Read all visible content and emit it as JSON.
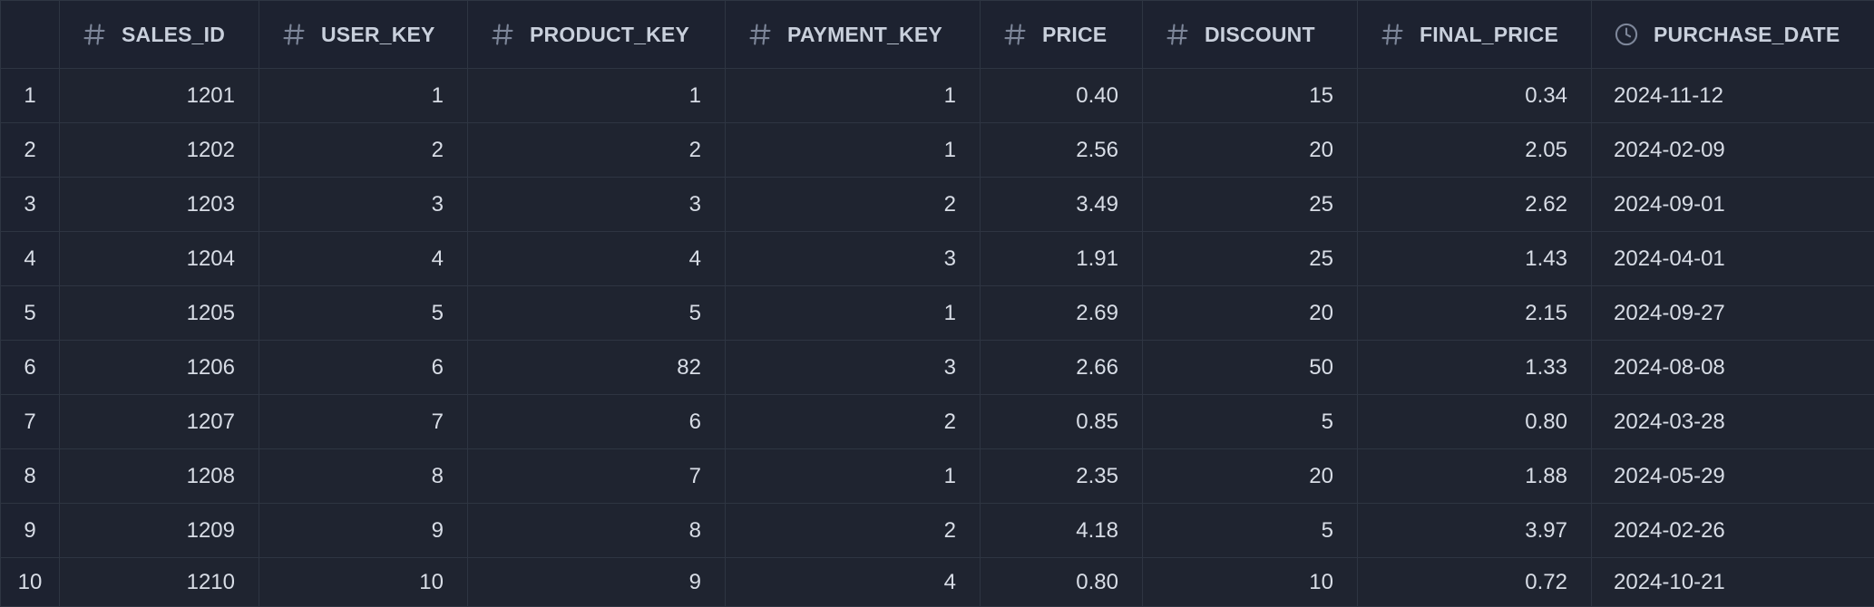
{
  "columns": [
    {
      "label": "SALES_ID",
      "icon": "hash-icon"
    },
    {
      "label": "USER_KEY",
      "icon": "hash-icon"
    },
    {
      "label": "PRODUCT_KEY",
      "icon": "hash-icon"
    },
    {
      "label": "PAYMENT_KEY",
      "icon": "hash-icon"
    },
    {
      "label": "PRICE",
      "icon": "hash-icon"
    },
    {
      "label": "DISCOUNT",
      "icon": "hash-icon"
    },
    {
      "label": "FINAL_PRICE",
      "icon": "hash-icon"
    },
    {
      "label": "PURCHASE_DATE",
      "icon": "clock-icon"
    }
  ],
  "rows": [
    [
      "1",
      "1201",
      "1",
      "1",
      "1",
      "0.40",
      "15",
      "0.34",
      "2024-11-12"
    ],
    [
      "2",
      "1202",
      "2",
      "2",
      "1",
      "2.56",
      "20",
      "2.05",
      "2024-02-09"
    ],
    [
      "3",
      "1203",
      "3",
      "3",
      "2",
      "3.49",
      "25",
      "2.62",
      "2024-09-01"
    ],
    [
      "4",
      "1204",
      "4",
      "4",
      "3",
      "1.91",
      "25",
      "1.43",
      "2024-04-01"
    ],
    [
      "5",
      "1205",
      "5",
      "5",
      "1",
      "2.69",
      "20",
      "2.15",
      "2024-09-27"
    ],
    [
      "6",
      "1206",
      "6",
      "82",
      "3",
      "2.66",
      "50",
      "1.33",
      "2024-08-08"
    ],
    [
      "7",
      "1207",
      "7",
      "6",
      "2",
      "0.85",
      "5",
      "0.80",
      "2024-03-28"
    ],
    [
      "8",
      "1208",
      "8",
      "7",
      "1",
      "2.35",
      "20",
      "1.88",
      "2024-05-29"
    ],
    [
      "9",
      "1209",
      "9",
      "8",
      "2",
      "4.18",
      "5",
      "3.97",
      "2024-02-26"
    ],
    [
      "10",
      "1210",
      "10",
      "9",
      "4",
      "0.80",
      "10",
      "0.72",
      "2024-10-21"
    ]
  ],
  "colors": {
    "background": "#1f2430",
    "header_background": "#1d2230",
    "grid_line": "#2e3542",
    "text": "#d8dde6",
    "row_number_text": "#6c7587",
    "icon": "#7d8699"
  }
}
